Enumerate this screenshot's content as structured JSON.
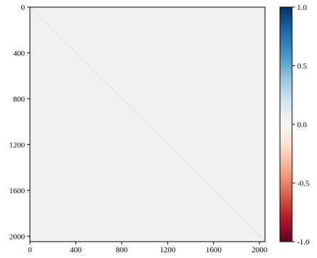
{
  "chart_data": {
    "type": "heatmap",
    "title": "",
    "xlabel": "",
    "ylabel": "",
    "x_range": [
      0,
      2048
    ],
    "y_range": [
      0,
      2048
    ],
    "y_inverted": true,
    "x_ticks": [
      0,
      400,
      800,
      1200,
      1600,
      2000
    ],
    "y_ticks": [
      0,
      400,
      800,
      1200,
      1600,
      2000
    ],
    "grid": false,
    "matrix_summary": {
      "size": 2048,
      "off_diagonal_value": 0.0,
      "diagonal_value": 0.05,
      "note": "near-uniform values close to 0 with a faint diagonal"
    },
    "colorbar": {
      "colormap": "RdBu",
      "vmin": -1.0,
      "vmax": 1.0,
      "ticks": [
        "-1.0",
        "-0.5",
        "0.0",
        "0.5",
        "1.0"
      ],
      "placement": "right",
      "colors": [
        "#67001f",
        "#b2182b",
        "#d6604d",
        "#f4a582",
        "#fddbc7",
        "#f7f7f7",
        "#d1e5f0",
        "#92c5de",
        "#4393c3",
        "#2166ac",
        "#053061"
      ]
    },
    "cell_color": "#f0f0f0",
    "diagonal_color": "#e0e0e0"
  }
}
